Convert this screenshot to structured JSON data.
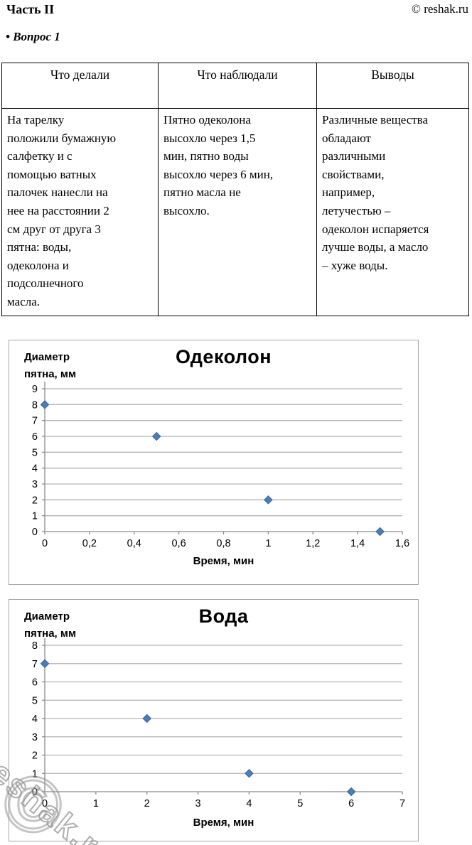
{
  "header": {
    "part_title": "Часть II",
    "copyright": "© reshak.ru",
    "question_label": "• Вопрос 1"
  },
  "table": {
    "headers": [
      "Что делали",
      "Что наблюдали",
      "Выводы"
    ],
    "rows": [
      [
        "На тарелку\nположили бумажную\nсалфетку и с\nпомощью ватных\nпалочек нанесли на\nнее на расстоянии 2\nсм друг от друга 3\nпятна: воды,\nодеколона и\nподсолнечного\nмасла.",
        "Пятно одеколона\nвысохло через 1,5\nмин, пятно воды\nвысохло через 6 мин,\nпятно масла не\nвысохло.",
        "Различные вещества\nобладают\nразличными\nсвойствами,\nнапример,\nлетучестью –\nодеколон испаряется\nлучше воды, а масло\n– хуже воды."
      ]
    ]
  },
  "chart_data": [
    {
      "type": "scatter",
      "title": "Одеколон",
      "ylabel_lines": [
        "Диаметр",
        "пятна, мм"
      ],
      "xlabel": "Время, мин",
      "x": [
        0,
        0.5,
        1,
        1.5
      ],
      "y": [
        8,
        6,
        2,
        0
      ],
      "xlim": [
        0,
        1.6
      ],
      "ylim": [
        0,
        9
      ],
      "x_tick_values": [
        0,
        0.2,
        0.4,
        0.6,
        0.8,
        1,
        1.2,
        1.4,
        1.6
      ],
      "x_tick_labels": [
        "0",
        "0,2",
        "0,4",
        "0,6",
        "0,8",
        "1",
        "1,2",
        "1,4",
        "1,6"
      ],
      "y_tick_values": [
        0,
        1,
        2,
        3,
        4,
        5,
        6,
        7,
        8,
        9
      ],
      "y_tick_labels": [
        "0",
        "1",
        "2",
        "3",
        "4",
        "5",
        "6",
        "7",
        "8",
        "9"
      ],
      "grid": true,
      "legend": "none",
      "marker": "diamond",
      "marker_color": "#4a7ebb",
      "marker_edge_color": "#38639d",
      "grid_color": "#b3b3b3",
      "axis_color": "#8c8c8c"
    },
    {
      "type": "scatter",
      "title": "Вода",
      "ylabel_lines": [
        "Диаметр",
        "пятна, мм"
      ],
      "xlabel": "Время, мин",
      "x": [
        0,
        2,
        4,
        6
      ],
      "y": [
        7,
        4,
        1,
        0
      ],
      "xlim": [
        0,
        7
      ],
      "ylim": [
        0,
        8
      ],
      "x_tick_values": [
        0,
        1,
        2,
        3,
        4,
        5,
        6,
        7
      ],
      "x_tick_labels": [
        "0",
        "1",
        "2",
        "3",
        "4",
        "5",
        "6",
        "7"
      ],
      "y_tick_values": [
        0,
        1,
        2,
        3,
        4,
        5,
        6,
        7,
        8
      ],
      "y_tick_labels": [
        "0",
        "1",
        "2",
        "3",
        "4",
        "5",
        "6",
        "7",
        "8"
      ],
      "grid": true,
      "legend": "none",
      "marker": "diamond",
      "marker_color": "#4a7ebb",
      "marker_edge_color": "#38639d",
      "grid_color": "#b3b3b3",
      "axis_color": "#8c8c8c"
    }
  ],
  "watermark": {
    "symbol": "©",
    "text": "reshak.ru"
  }
}
